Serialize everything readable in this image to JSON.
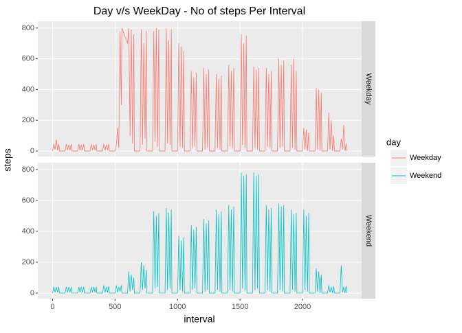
{
  "chart_data": {
    "type": "line",
    "title": "Day v/s WeekDay - No of steps Per Interval",
    "x_label": "interval",
    "y_label": "steps",
    "legend_title": "day",
    "facet": true,
    "grid": true,
    "xlim": [
      -118,
      2473
    ],
    "xticks": [
      0,
      500,
      1000,
      1500,
      2000
    ],
    "ylim": [
      -36,
      844
    ],
    "yticks": [
      0,
      200,
      400,
      600,
      800
    ],
    "x": [
      0,
      10,
      20,
      30,
      40,
      50,
      55,
      100,
      110,
      120,
      130,
      140,
      150,
      155,
      200,
      210,
      220,
      230,
      240,
      250,
      255,
      300,
      310,
      320,
      330,
      340,
      350,
      355,
      400,
      410,
      420,
      430,
      440,
      450,
      455,
      500,
      510,
      520,
      530,
      540,
      550,
      555,
      600,
      610,
      620,
      630,
      640,
      650,
      655,
      700,
      710,
      720,
      730,
      740,
      750,
      755,
      800,
      810,
      820,
      830,
      840,
      850,
      855,
      900,
      910,
      920,
      930,
      940,
      950,
      955,
      1000,
      1010,
      1020,
      1030,
      1040,
      1050,
      1055,
      1100,
      1110,
      1120,
      1130,
      1140,
      1150,
      1155,
      1200,
      1210,
      1220,
      1230,
      1240,
      1250,
      1255,
      1300,
      1310,
      1320,
      1330,
      1340,
      1350,
      1355,
      1400,
      1410,
      1420,
      1430,
      1440,
      1450,
      1455,
      1500,
      1510,
      1520,
      1530,
      1540,
      1550,
      1555,
      1600,
      1610,
      1620,
      1630,
      1640,
      1650,
      1655,
      1700,
      1710,
      1720,
      1730,
      1740,
      1750,
      1755,
      1800,
      1810,
      1820,
      1830,
      1840,
      1850,
      1855,
      1900,
      1910,
      1920,
      1930,
      1940,
      1950,
      1955,
      2000,
      2010,
      2020,
      2030,
      2040,
      2050,
      2055,
      2100,
      2110,
      2120,
      2130,
      2140,
      2150,
      2155,
      2200,
      2210,
      2220,
      2230,
      2240,
      2250,
      2255,
      2300,
      2310,
      2320,
      2330,
      2340,
      2350,
      2355
    ],
    "series": [
      {
        "name": "Weekday",
        "color": "#F8766D",
        "values": [
          0,
          45,
          10,
          75,
          5,
          45,
          0,
          0,
          45,
          5,
          40,
          5,
          45,
          0,
          0,
          45,
          5,
          40,
          5,
          45,
          0,
          0,
          45,
          5,
          40,
          5,
          45,
          0,
          0,
          45,
          5,
          40,
          5,
          45,
          0,
          0,
          40,
          150,
          20,
          780,
          300,
          800,
          700,
          800,
          100,
          790,
          50,
          760,
          0,
          0,
          790,
          40,
          700,
          80,
          780,
          0,
          0,
          780,
          60,
          800,
          30,
          790,
          0,
          0,
          800,
          50,
          720,
          40,
          790,
          0,
          0,
          700,
          30,
          680,
          20,
          650,
          0,
          0,
          520,
          20,
          480,
          30,
          510,
          0,
          0,
          540,
          10,
          500,
          20,
          530,
          0,
          0,
          500,
          20,
          470,
          10,
          490,
          0,
          0,
          560,
          30,
          520,
          20,
          540,
          0,
          0,
          760,
          40,
          700,
          20,
          750,
          0,
          0,
          550,
          20,
          530,
          10,
          540,
          0,
          0,
          540,
          30,
          500,
          20,
          520,
          0,
          0,
          600,
          20,
          560,
          30,
          590,
          0,
          0,
          560,
          20,
          600,
          10,
          520,
          0,
          0,
          150,
          10,
          140,
          0,
          120,
          0,
          0,
          410,
          10,
          400,
          0,
          380,
          0,
          0,
          250,
          10,
          200,
          0,
          100,
          0,
          0,
          80,
          10,
          170,
          0,
          50,
          0
        ]
      },
      {
        "name": "Weekend",
        "color": "#00BFC4",
        "values": [
          0,
          40,
          5,
          40,
          5,
          40,
          0,
          0,
          40,
          5,
          40,
          5,
          40,
          0,
          0,
          40,
          5,
          40,
          5,
          40,
          0,
          0,
          40,
          5,
          40,
          5,
          40,
          0,
          0,
          50,
          5,
          40,
          5,
          45,
          0,
          0,
          50,
          5,
          40,
          10,
          50,
          0,
          0,
          140,
          10,
          120,
          20,
          100,
          0,
          0,
          200,
          20,
          180,
          30,
          150,
          0,
          0,
          530,
          30,
          500,
          40,
          520,
          0,
          0,
          550,
          20,
          520,
          30,
          540,
          0,
          0,
          370,
          20,
          340,
          10,
          360,
          0,
          0,
          440,
          20,
          410,
          30,
          430,
          0,
          0,
          480,
          10,
          450,
          20,
          470,
          0,
          0,
          540,
          20,
          510,
          10,
          530,
          0,
          0,
          570,
          20,
          540,
          10,
          560,
          0,
          0,
          780,
          30,
          760,
          20,
          770,
          0,
          0,
          780,
          20,
          760,
          30,
          770,
          0,
          0,
          570,
          20,
          540,
          10,
          550,
          0,
          0,
          580,
          20,
          560,
          10,
          570,
          0,
          0,
          540,
          20,
          510,
          10,
          520,
          0,
          0,
          540,
          20,
          500,
          10,
          520,
          0,
          0,
          160,
          10,
          140,
          0,
          120,
          0,
          0,
          50,
          5,
          40,
          0,
          45,
          0,
          0,
          180,
          5,
          40,
          0,
          45,
          0
        ]
      }
    ]
  }
}
